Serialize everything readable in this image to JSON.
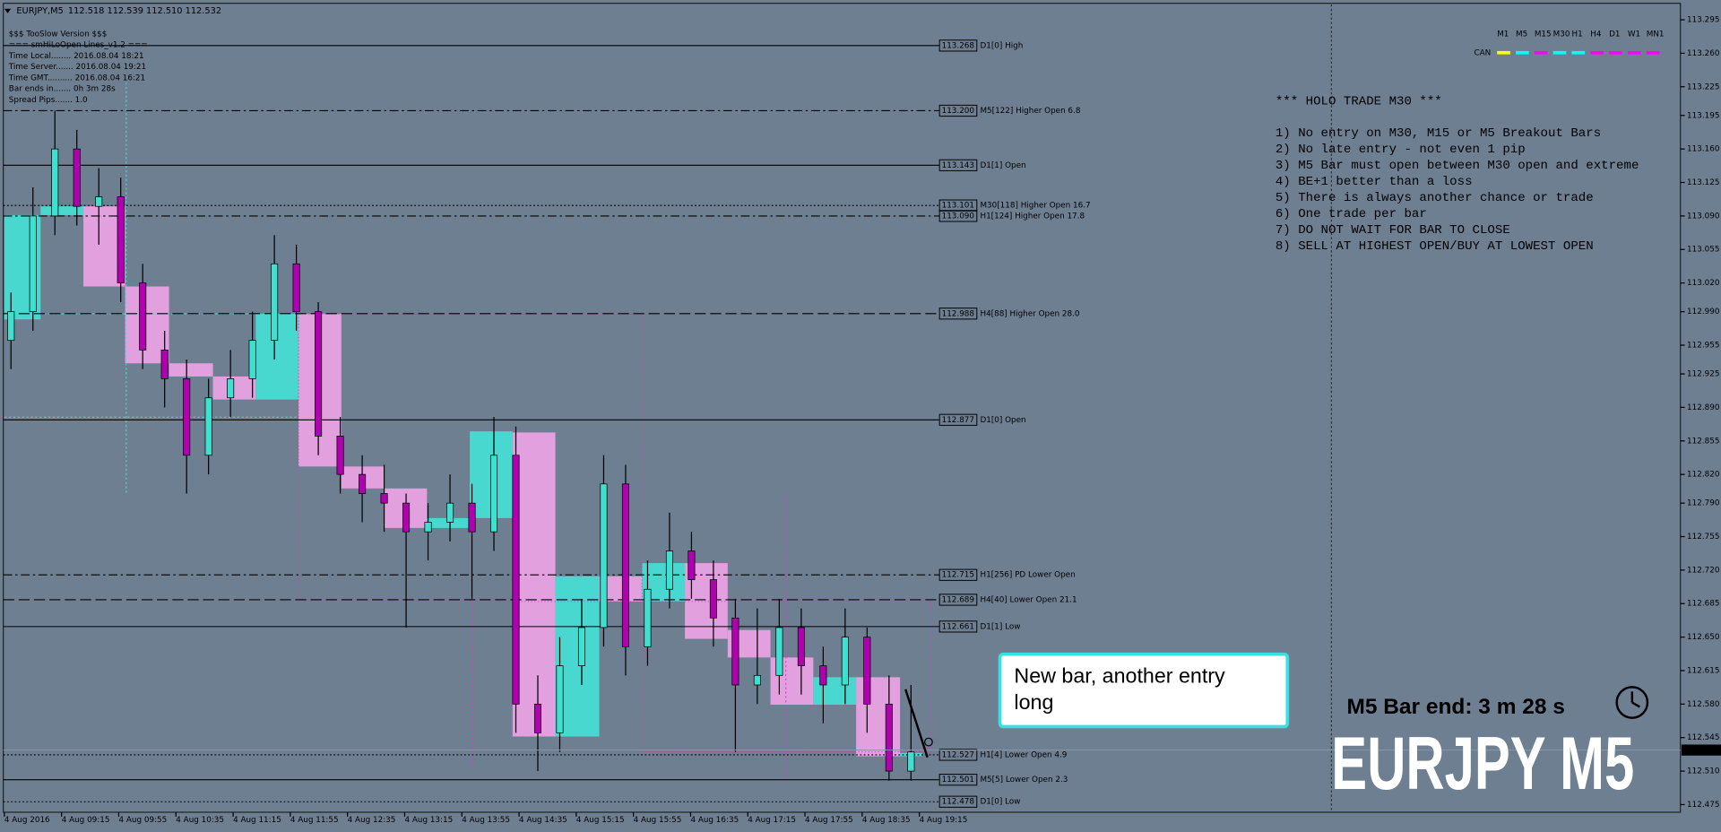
{
  "header": {
    "symbol": "EURJPY,M5",
    "quote": "112.518 112.539 112.510 112.532"
  },
  "info": [
    "$$$ TooSlow Version $$$",
    "=== smHiLoOpen Lines_v1.2 ===",
    "Time Local........ 2016.08.04 18:21",
    "Time Server....... 2016.08.04 19:21",
    "Time GMT.......... 2016.08.04 16:21",
    "Bar ends in....... 0h 3m 28s",
    "Spread Pips....... 1.0"
  ],
  "price_axis": {
    "ticks": [
      113.295,
      {
        "value": 113.26,
        "label": "113.260"
      },
      113.225,
      113.195,
      {
        "value": 113.16,
        "label": "113.160"
      },
      113.125,
      {
        "value": 113.09,
        "label": "113.090"
      },
      113.055,
      {
        "value": 113.02,
        "label": "113.020"
      },
      {
        "value": 112.99,
        "label": "112.990"
      },
      112.955,
      112.925,
      {
        "value": 112.89,
        "label": "112.890"
      },
      112.855,
      {
        "value": 112.82,
        "label": "112.820"
      },
      {
        "value": 112.79,
        "label": "112.790"
      },
      112.755,
      {
        "value": 112.72,
        "label": "112.720"
      },
      112.685,
      {
        "value": 112.65,
        "label": "112.650"
      },
      112.615,
      {
        "value": 112.58,
        "label": "112.580"
      },
      112.545,
      {
        "value": 112.51,
        "label": "112.510"
      },
      112.475
    ],
    "current": 112.532
  },
  "time_axis": [
    "4 Aug 2016",
    "4 Aug 09:15",
    "4 Aug 09:55",
    "4 Aug 10:35",
    "4 Aug 11:15",
    "4 Aug 11:55",
    "4 Aug 12:35",
    "4 Aug 13:15",
    "4 Aug 13:55",
    "4 Aug 14:35",
    "4 Aug 15:15",
    "4 Aug 15:55",
    "4 Aug 16:35",
    "4 Aug 17:15",
    "4 Aug 17:55",
    "4 Aug 18:35",
    "4 Aug 19:15"
  ],
  "levels": [
    {
      "price": 113.268,
      "name": "D1[0] High",
      "style": "solid"
    },
    {
      "price": {
        "value": 113.2,
        "label": "113.200"
      },
      "name": "M5[122] Higher Open 6.8",
      "style": "dashdot"
    },
    {
      "price": 113.143,
      "name": "D1[1] Open",
      "style": "solid"
    },
    {
      "price": 113.101,
      "name": "M30[118] Higher Open 16.7",
      "style": "dotted"
    },
    {
      "price": {
        "value": 113.09,
        "label": "113.090"
      },
      "name": "H1[124] Higher Open 17.8",
      "style": "dashdot"
    },
    {
      "price": 112.988,
      "name": "H4[88] Higher Open 28.0",
      "style": "dashed"
    },
    {
      "price": 112.877,
      "name": "D1[0] Open",
      "style": "solid"
    },
    {
      "price": 112.715,
      "name": "H1[256] PD Lower Open",
      "style": "dashdot"
    },
    {
      "price": 112.689,
      "name": "H4[40] Lower Open 21.1",
      "style": "dashed"
    },
    {
      "price": 112.661,
      "name": "D1[1] Low",
      "style": "solid"
    },
    {
      "price": 112.527,
      "name": "H1[4] Lower Open 4.9",
      "style": "dotted"
    },
    {
      "price": 112.501,
      "name": "M5[5] Lower Open 2.3",
      "style": "solid"
    },
    {
      "price": 112.478,
      "name": "D1[0] Low",
      "style": "dotted"
    }
  ],
  "candles": [
    [
      112.96,
      113.01,
      112.93,
      112.99
    ],
    [
      112.99,
      113.12,
      112.97,
      113.09
    ],
    [
      113.09,
      113.2,
      113.07,
      113.16
    ],
    [
      113.16,
      113.18,
      113.08,
      113.1
    ],
    [
      113.1,
      113.14,
      113.06,
      113.11
    ],
    [
      113.11,
      113.13,
      113,
      113.02
    ],
    [
      113.02,
      113.04,
      112.93,
      112.95
    ],
    [
      112.95,
      112.97,
      112.89,
      112.92
    ],
    [
      112.92,
      112.94,
      112.8,
      112.84
    ],
    [
      112.84,
      112.92,
      112.82,
      112.9
    ],
    [
      112.9,
      112.95,
      112.88,
      112.92
    ],
    [
      112.92,
      112.99,
      112.9,
      112.96
    ],
    [
      112.96,
      113.07,
      112.94,
      113.04
    ],
    [
      113.04,
      113.06,
      112.97,
      112.99
    ],
    [
      112.99,
      113,
      112.84,
      112.86
    ],
    [
      112.86,
      112.88,
      112.8,
      112.82
    ],
    [
      112.82,
      112.84,
      112.77,
      112.8
    ],
    [
      112.8,
      112.83,
      112.76,
      112.79
    ],
    [
      112.79,
      112.8,
      112.66,
      112.76
    ],
    [
      112.76,
      112.79,
      112.73,
      112.77
    ],
    [
      112.77,
      112.82,
      112.75,
      112.79
    ],
    [
      112.79,
      112.81,
      112.69,
      112.76
    ],
    [
      112.76,
      112.88,
      112.74,
      112.84
    ],
    [
      112.84,
      112.87,
      112.55,
      112.58
    ],
    [
      112.58,
      112.61,
      112.51,
      112.55
    ],
    [
      112.55,
      112.65,
      112.53,
      112.62
    ],
    [
      112.62,
      112.69,
      112.6,
      112.66
    ],
    [
      112.66,
      112.84,
      112.64,
      112.81
    ],
    [
      112.81,
      112.83,
      112.61,
      112.64
    ],
    [
      112.64,
      112.73,
      112.62,
      112.7
    ],
    [
      112.7,
      112.78,
      112.68,
      112.74
    ],
    [
      112.74,
      112.76,
      112.69,
      112.71
    ],
    [
      112.71,
      112.73,
      112.64,
      112.67
    ],
    [
      112.67,
      112.69,
      112.53,
      112.6
    ],
    [
      112.6,
      112.68,
      112.58,
      112.61
    ],
    [
      112.61,
      112.69,
      112.59,
      112.66
    ],
    [
      112.66,
      112.68,
      112.59,
      112.62
    ],
    [
      112.62,
      112.64,
      112.56,
      112.6
    ],
    [
      112.6,
      112.68,
      112.58,
      112.65
    ],
    [
      112.65,
      112.66,
      112.55,
      112.58
    ],
    [
      112.58,
      112.61,
      112.5,
      112.51
    ],
    [
      112.51,
      112.6,
      112.5,
      112.53
    ]
  ],
  "timeframes": {
    "label": "CAN",
    "items": [
      {
        "name": "M1",
        "color": "#ffff00"
      },
      {
        "name": "M5",
        "color": "#00ffff"
      },
      {
        "name": "M15",
        "color": "#ff00ff"
      },
      {
        "name": "M30",
        "color": "#00ffff"
      },
      {
        "name": "H1",
        "color": "#00ffff"
      },
      {
        "name": "H4",
        "color": "#ff00ff"
      },
      {
        "name": "D1",
        "color": "#ff00ff"
      },
      {
        "name": "W1",
        "color": "#ff00ff"
      },
      {
        "name": "MN1",
        "color": "#ff00ff"
      }
    ]
  },
  "notes": {
    "title": "*** HOLO TRADE M30 ***",
    "title_color": "#00ffff",
    "items": [
      {
        "text": "1) No entry on M30, M15 or M5 Breakout Bars",
        "color": "#111111"
      },
      {
        "text": "2) No late entry - not even 1 pip",
        "color": "#111111"
      },
      {
        "text": "3) M5 Bar must open between M30 open and extreme",
        "color": "#111111"
      },
      {
        "text": "4) BE+1 better than a loss",
        "color": "#111111"
      },
      {
        "text": "5) There is always another chance or trade",
        "color": "#111111"
      },
      {
        "text": "6) One trade per bar",
        "color": "#111111"
      },
      {
        "text": "7) DO NOT WAIT FOR BAR TO CLOSE",
        "color": "#ff2020"
      },
      {
        "text": "8) SELL AT HIGHEST OPEN/BUY AT LOWEST OPEN",
        "color": "#0000ff"
      }
    ]
  },
  "callout": [
    "New bar, another entry",
    "long"
  ],
  "bar_end": "M5 Bar end: 3 m 28 s",
  "watermark": "EURJPY M5"
}
